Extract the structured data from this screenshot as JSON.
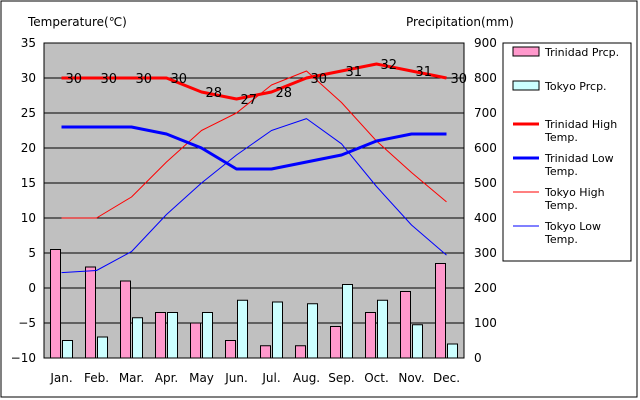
{
  "chart_data": {
    "type": "bar+line",
    "categories": [
      "Jan.",
      "Feb.",
      "Mar.",
      "Apr.",
      "May",
      "Jun.",
      "Jul.",
      "Aug.",
      "Sep.",
      "Oct.",
      "Nov.",
      "Dec."
    ],
    "left_axis_title": "Temperature(℃)",
    "right_axis_title": "Precipitation(mm)",
    "ylim_temp": [
      -10,
      35
    ],
    "ylim_precip": [
      0,
      900
    ],
    "temp_ticks": [
      35,
      30,
      25,
      20,
      15,
      10,
      5,
      0,
      -5,
      -10
    ],
    "precip_ticks": [
      900,
      800,
      700,
      600,
      500,
      400,
      300,
      200,
      100,
      0
    ],
    "grid": true,
    "plot_background": "#c0c0c0",
    "legend_position": "right",
    "bar_series": [
      {
        "name": "Trinidad Prcp.",
        "color": "#ff99cc",
        "values": [
          310,
          260,
          220,
          130,
          100,
          50,
          35,
          35,
          90,
          130,
          190,
          270
        ]
      },
      {
        "name": "Tokyo Prcp.",
        "color": "#ccffff",
        "values": [
          50,
          60,
          115,
          130,
          130,
          165,
          160,
          155,
          210,
          165,
          95,
          40
        ]
      }
    ],
    "line_series": [
      {
        "name": "Trinidad High Temp.",
        "color": "#ff0000",
        "width": 3,
        "values": [
          30,
          30,
          30,
          30,
          28,
          27,
          28,
          30,
          31,
          32,
          31,
          30
        ],
        "labels": [
          "30",
          "30",
          "30",
          "30",
          "28",
          "27",
          "28",
          "30",
          "31",
          "32",
          "31",
          "30"
        ]
      },
      {
        "name": "Trinidad Low Temp.",
        "color": "#0000ff",
        "width": 3,
        "values": [
          23,
          23,
          23,
          22,
          20,
          17,
          17,
          18,
          19,
          21,
          22,
          22
        ]
      },
      {
        "name": "Tokyo High Temp.",
        "color": "#ff0000",
        "width": 1,
        "values": [
          10,
          10,
          13,
          18,
          22.5,
          25,
          29,
          31,
          26.5,
          21,
          16.5,
          12.3
        ]
      },
      {
        "name": "Tokyo Low Temp.",
        "color": "#0000ff",
        "width": 1,
        "values": [
          2.2,
          2.5,
          5.2,
          10.5,
          15,
          19,
          22.5,
          24.2,
          20.6,
          14.5,
          9,
          4.7
        ]
      }
    ]
  }
}
